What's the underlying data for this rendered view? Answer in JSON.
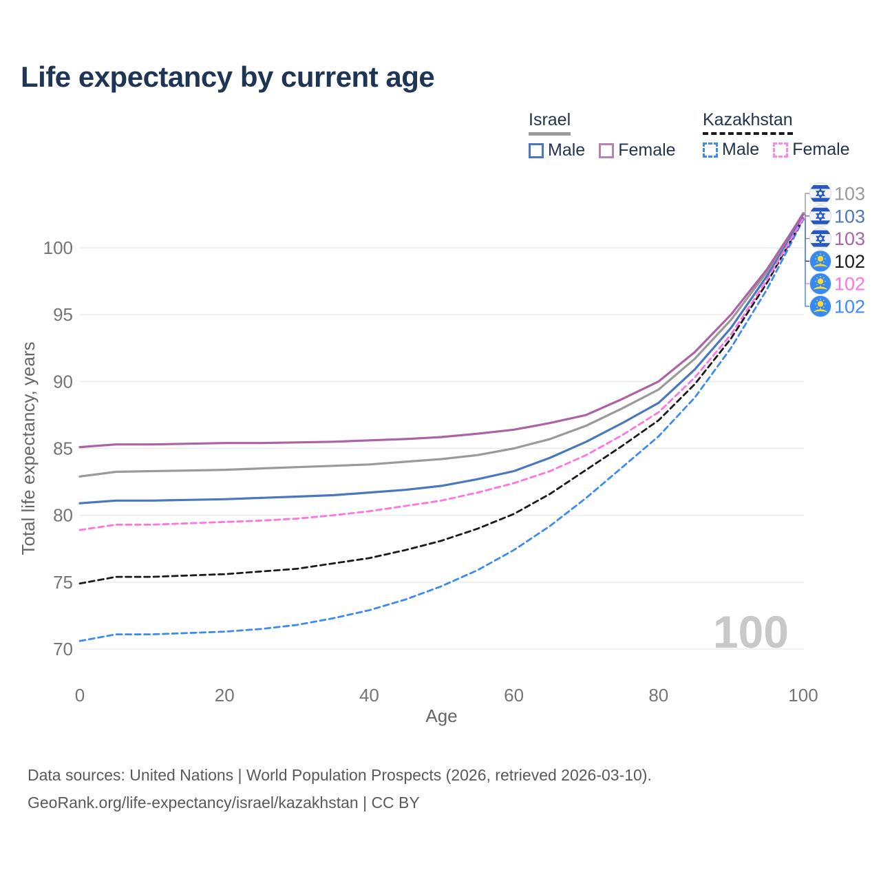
{
  "header": {
    "title": "Life expectancy by current age"
  },
  "legend": {
    "groups": [
      {
        "country": "Israel",
        "line_style": "solid",
        "line_color": "#9a9a9a",
        "items": [
          {
            "label": "Male",
            "color": "#4a77bd",
            "dashed": false
          },
          {
            "label": "Female",
            "color": "#b584b3",
            "dashed": false
          }
        ]
      },
      {
        "country": "Kazakhstan",
        "line_style": "dashed",
        "line_color": "#1a1a1a",
        "items": [
          {
            "label": "Male",
            "color": "#3d8af7",
            "dashed": true
          },
          {
            "label": "Female",
            "color": "#ff85e0",
            "dashed": true
          }
        ]
      }
    ]
  },
  "chart_data": {
    "type": "line",
    "title": "Life expectancy by current age",
    "xlabel": "Age",
    "ylabel": "Total life expectancy, years",
    "x_ticks": [
      0,
      20,
      40,
      60,
      80,
      100
    ],
    "y_ticks": [
      70,
      75,
      80,
      85,
      90,
      95,
      100
    ],
    "xlim": [
      0,
      100
    ],
    "ylim": [
      69,
      104
    ],
    "grid": "horizontal",
    "legend_position": "top-right",
    "watermark": "100",
    "ages": [
      0,
      5,
      10,
      15,
      20,
      25,
      30,
      35,
      40,
      45,
      50,
      55,
      60,
      65,
      70,
      75,
      80,
      85,
      90,
      95,
      100
    ],
    "series": [
      {
        "name": "Kazakhstan Male",
        "country": "Kazakhstan",
        "sex": "Male",
        "color": "#3d8af7",
        "dashed": true,
        "values": [
          70.6,
          71.1,
          71.1,
          71.2,
          71.3,
          71.5,
          71.8,
          72.3,
          72.9,
          73.7,
          74.7,
          75.9,
          77.4,
          79.2,
          81.3,
          83.6,
          85.9,
          88.8,
          92.5,
          96.9,
          102.1
        ]
      },
      {
        "name": "Kazakhstan Both sexes",
        "country": "Kazakhstan",
        "sex": "Both",
        "color": "#1a1a1a",
        "dashed": true,
        "values": [
          74.9,
          75.4,
          75.4,
          75.5,
          75.6,
          75.8,
          76.0,
          76.4,
          76.8,
          77.4,
          78.1,
          79.0,
          80.1,
          81.6,
          83.4,
          85.2,
          87.1,
          89.8,
          93.2,
          97.4,
          102.2
        ]
      },
      {
        "name": "Kazakhstan Female",
        "country": "Kazakhstan",
        "sex": "Female",
        "color": "#ff74de",
        "dashed": true,
        "values": [
          78.9,
          79.3,
          79.3,
          79.4,
          79.5,
          79.6,
          79.75,
          80.0,
          80.3,
          80.7,
          81.1,
          81.7,
          82.4,
          83.3,
          84.5,
          86.0,
          87.7,
          90.3,
          93.5,
          97.6,
          102.2
        ]
      },
      {
        "name": "Israel Male",
        "country": "Israel",
        "sex": "Male",
        "color": "#4a77bd",
        "dashed": false,
        "values": [
          80.9,
          81.1,
          81.1,
          81.15,
          81.2,
          81.3,
          81.4,
          81.5,
          81.7,
          81.9,
          82.2,
          82.7,
          83.3,
          84.3,
          85.5,
          86.9,
          88.4,
          90.9,
          94.0,
          97.9,
          102.5
        ]
      },
      {
        "name": "Israel Both sexes",
        "country": "Israel",
        "sex": "Both",
        "color": "#9a9a9a",
        "dashed": false,
        "values": [
          82.9,
          83.25,
          83.3,
          83.35,
          83.4,
          83.5,
          83.6,
          83.7,
          83.8,
          84.0,
          84.2,
          84.5,
          85.0,
          85.7,
          86.7,
          88.0,
          89.4,
          91.7,
          94.6,
          98.2,
          102.6
        ]
      },
      {
        "name": "Israel Female",
        "country": "Israel",
        "sex": "Female",
        "color": "#ad62a6",
        "dashed": false,
        "values": [
          85.1,
          85.3,
          85.3,
          85.35,
          85.4,
          85.4,
          85.45,
          85.5,
          85.6,
          85.7,
          85.85,
          86.1,
          86.4,
          86.9,
          87.5,
          88.7,
          90.0,
          92.2,
          95.0,
          98.4,
          102.5
        ]
      }
    ],
    "end_labels": [
      {
        "flag": "israel",
        "label": "103",
        "color": "#9a9a9a",
        "series_index": 4
      },
      {
        "flag": "israel",
        "label": "103",
        "color": "#4a77bd",
        "series_index": 3
      },
      {
        "flag": "israel",
        "label": "103",
        "color": "#ad62a6",
        "series_index": 5
      },
      {
        "flag": "kazakhstan",
        "label": "102",
        "color": "#1a1a1a",
        "series_index": 1
      },
      {
        "flag": "kazakhstan",
        "label": "102",
        "color": "#ff74de",
        "series_index": 2
      },
      {
        "flag": "kazakhstan",
        "label": "102",
        "color": "#3d8af7",
        "series_index": 0
      }
    ]
  },
  "footer": {
    "line1": "Data sources: United Nations | World Population Prospects (2026, retrieved 2026-03-10).",
    "line2": "GeoRank.org/life-expectancy/israel/kazakhstan | CC BY"
  }
}
